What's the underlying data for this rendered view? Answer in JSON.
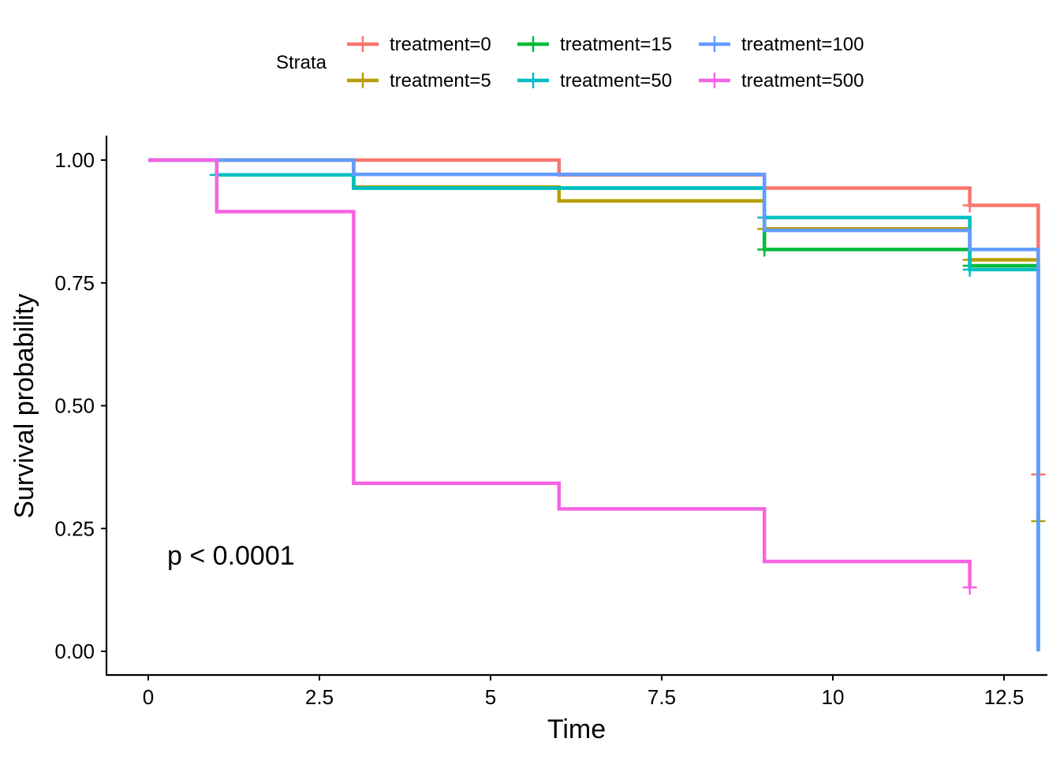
{
  "chart_data": {
    "type": "line",
    "subtype": "kaplan-meier step",
    "xlabel": "Time",
    "ylabel": "Survival probability",
    "xlim": [
      0,
      13
    ],
    "ylim": [
      0,
      1
    ],
    "x_ticks": [
      0,
      2.5,
      5,
      7.5,
      10,
      12.5
    ],
    "x_tick_labels": [
      "0",
      "2.5",
      "5",
      "7.5",
      "10",
      "12.5"
    ],
    "y_ticks": [
      0,
      0.25,
      0.5,
      0.75,
      1
    ],
    "y_tick_labels": [
      "0.00",
      "0.25",
      "0.50",
      "0.75",
      "1.00"
    ],
    "grid": false,
    "legend": {
      "title": "Strata",
      "position": "top"
    },
    "annotation": "p < 0.0001",
    "series": [
      {
        "name": "treatment=0",
        "color": "#F8766D",
        "x": [
          0,
          6,
          9,
          12,
          13
        ],
        "y": [
          1.0,
          0.97,
          0.943,
          0.908,
          0.36
        ],
        "censor": [
          [
            9,
            0.943
          ],
          [
            12,
            0.908
          ],
          [
            13,
            0.36
          ]
        ]
      },
      {
        "name": "treatment=5",
        "color": "#B79F00",
        "x": [
          0,
          3,
          6,
          9,
          12,
          13
        ],
        "y": [
          1.0,
          0.945,
          0.917,
          0.86,
          0.797,
          0.265
        ],
        "censor": [
          [
            9,
            0.86
          ],
          [
            12,
            0.797
          ],
          [
            13,
            0.265
          ]
        ]
      },
      {
        "name": "treatment=15",
        "color": "#00BA38",
        "x": [
          0,
          1,
          3,
          9,
          12,
          13
        ],
        "y": [
          1.0,
          0.97,
          0.943,
          0.818,
          0.785,
          0.0
        ],
        "censor": [
          [
            9,
            0.818
          ],
          [
            12,
            0.785
          ]
        ]
      },
      {
        "name": "treatment=50",
        "color": "#00BFC4",
        "x": [
          0,
          1,
          3,
          9,
          12,
          13
        ],
        "y": [
          1.0,
          0.97,
          0.943,
          0.883,
          0.777,
          0.0
        ],
        "censor": [
          [
            1,
            0.97
          ],
          [
            9,
            0.883
          ],
          [
            12,
            0.777
          ]
        ]
      },
      {
        "name": "treatment=100",
        "color": "#619CFF",
        "x": [
          0,
          3,
          9,
          12,
          13
        ],
        "y": [
          1.0,
          0.971,
          0.857,
          0.818,
          0.0
        ],
        "censor": []
      },
      {
        "name": "treatment=500",
        "color": "#F564E3",
        "x": [
          0,
          1,
          3,
          6,
          9,
          12
        ],
        "y": [
          1.0,
          0.895,
          0.342,
          0.29,
          0.183,
          0.13
        ],
        "censor": [
          [
            12,
            0.13
          ]
        ]
      }
    ]
  }
}
